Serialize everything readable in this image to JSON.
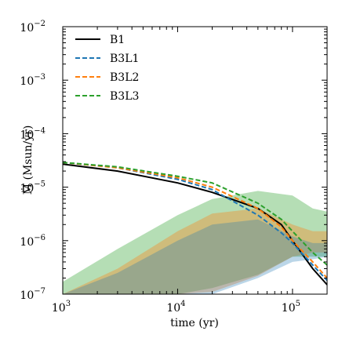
{
  "chart_data": {
    "type": "line",
    "title": "",
    "xlabel": "time (yr)",
    "ylabel": "Ṁ (Msun/yr)",
    "xscale": "log",
    "yscale": "log",
    "xlim": [
      1000,
      200000
    ],
    "ylim": [
      1e-07,
      0.01
    ],
    "x_ticks": [
      {
        "value": 1000,
        "base": "10",
        "exp": "3"
      },
      {
        "value": 10000,
        "base": "10",
        "exp": "4"
      },
      {
        "value": 100000,
        "base": "10",
        "exp": "5"
      }
    ],
    "y_ticks": [
      {
        "value": 1e-07,
        "base": "10",
        "exp": "−7"
      },
      {
        "value": 1e-06,
        "base": "10",
        "exp": "−6"
      },
      {
        "value": 1e-05,
        "base": "10",
        "exp": "−5"
      },
      {
        "value": 0.0001,
        "base": "10",
        "exp": "−4"
      },
      {
        "value": 0.001,
        "base": "10",
        "exp": "−3"
      },
      {
        "value": 0.01,
        "base": "10",
        "exp": "−2"
      }
    ],
    "grid": false,
    "legend_position": "top-left",
    "series": [
      {
        "name": "B1",
        "color": "#000000",
        "dash": "solid",
        "x": [
          1000,
          3000,
          10000,
          20000,
          50000,
          80000,
          100000,
          150000,
          200000
        ],
        "y": [
          2.7e-05,
          2e-05,
          1.2e-05,
          8e-06,
          4e-06,
          2e-06,
          1e-06,
          3e-07,
          1.5e-07
        ]
      },
      {
        "name": "B3L1",
        "color": "#1f77b4",
        "dash": "dashed",
        "x": [
          1000,
          3000,
          10000,
          20000,
          50000,
          80000,
          100000,
          150000,
          200000
        ],
        "y": [
          2.9e-05,
          2.3e-05,
          1.4e-05,
          9e-06,
          3e-06,
          1.4e-06,
          9e-07,
          3.5e-07,
          1.8e-07
        ]
      },
      {
        "name": "B3L2",
        "color": "#ff7f0e",
        "dash": "dashed",
        "x": [
          1000,
          3000,
          10000,
          20000,
          50000,
          80000,
          100000,
          150000,
          200000
        ],
        "y": [
          2.9e-05,
          2.3e-05,
          1.5e-05,
          1e-05,
          4e-06,
          1.8e-06,
          1e-06,
          4e-07,
          2e-07
        ]
      },
      {
        "name": "B3L3",
        "color": "#2ca02c",
        "dash": "dashed",
        "x": [
          1000,
          3000,
          10000,
          20000,
          50000,
          80000,
          100000,
          150000,
          200000
        ],
        "y": [
          2.9e-05,
          2.4e-05,
          1.6e-05,
          1.2e-05,
          5e-06,
          2.5e-06,
          1.5e-06,
          6e-07,
          3.5e-07
        ]
      }
    ],
    "bands": [
      {
        "series": "B3L3",
        "color": "#2ca02c",
        "opacity": 0.35,
        "x": [
          1000,
          3000,
          10000,
          20000,
          50000,
          100000,
          150000,
          200000
        ],
        "lower": [
          1e-07,
          1e-07,
          1e-07,
          1.3e-07,
          2.3e-07,
          5e-07,
          5e-07,
          5e-07
        ],
        "upper": [
          1.7e-07,
          7e-07,
          3e-06,
          6e-06,
          8.5e-06,
          7e-06,
          4e-06,
          3.5e-06
        ]
      },
      {
        "series": "B3L2",
        "color": "#ff7f0e",
        "opacity": 0.35,
        "x": [
          1000,
          3000,
          10000,
          20000,
          50000,
          100000,
          150000,
          200000
        ],
        "lower": [
          1e-07,
          1e-07,
          1e-07,
          1.1e-07,
          2.2e-07,
          5e-07,
          6e-07,
          6e-07
        ],
        "upper": [
          1e-07,
          3e-07,
          1.5e-06,
          3.2e-06,
          4e-06,
          2e-06,
          1.5e-06,
          1.5e-06
        ]
      },
      {
        "series": "B3L1",
        "color": "#1f77b4",
        "opacity": 0.3,
        "x": [
          1000,
          3000,
          10000,
          20000,
          50000,
          100000,
          150000,
          200000
        ],
        "lower": [
          1e-07,
          1e-07,
          1e-07,
          1e-07,
          2e-07,
          4e-07,
          4.5e-07,
          5e-07
        ],
        "upper": [
          1e-07,
          2.5e-07,
          1e-06,
          2e-06,
          2.5e-06,
          1.2e-06,
          9e-07,
          9e-07
        ]
      }
    ]
  }
}
